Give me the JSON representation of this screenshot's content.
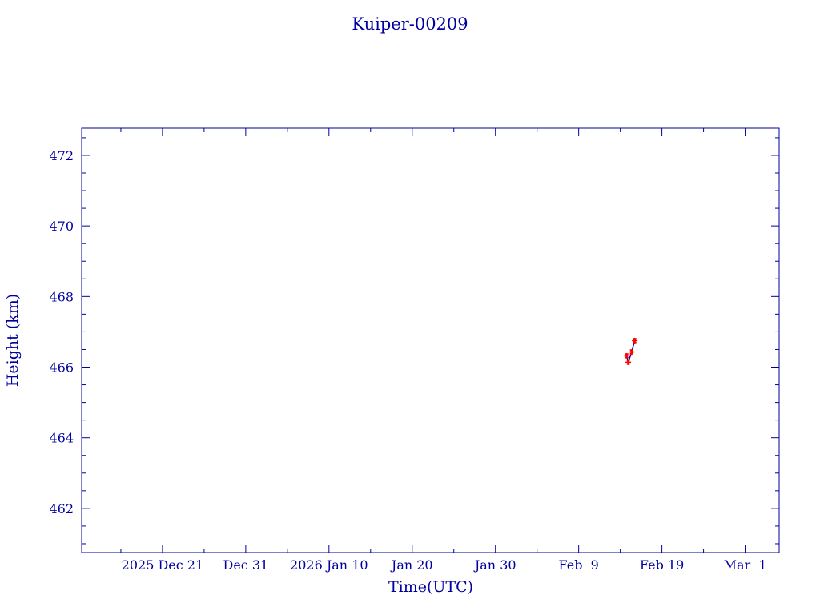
{
  "chart_data": {
    "type": "line",
    "title": "Kuiper-00209",
    "xlabel": "Time(UTC)",
    "ylabel": "Height (km)",
    "xlim": [
      "2025-12-11T07:00",
      "2026-03-05T02:00"
    ],
    "ylim": [
      460.75,
      472.77
    ],
    "x_ticks": [
      {
        "date": "2025-12-21",
        "label": "2025 Dec 21"
      },
      {
        "date": "2025-12-31",
        "label": "Dec 31"
      },
      {
        "date": "2026-01-10",
        "label": "2026 Jan 10"
      },
      {
        "date": "2026-01-20",
        "label": "Jan 20"
      },
      {
        "date": "2026-01-30",
        "label": "Jan 30"
      },
      {
        "date": "2026-02-09",
        "label": "Feb  9"
      },
      {
        "date": "2026-02-19",
        "label": "Feb 19"
      },
      {
        "date": "2026-03-01",
        "label": "Mar  1"
      }
    ],
    "y_ticks": [
      462,
      464,
      466,
      468,
      470,
      472
    ],
    "grid": false,
    "colors": {
      "axes": "#0000a0",
      "line": "#0000a0",
      "markers": "#ff0000"
    },
    "series": [
      {
        "x": [
          "2026-02-14T18:30",
          "2026-02-14T23:00",
          "2026-02-15T08:30",
          "2026-02-15T17:30"
        ],
        "y": [
          466.32,
          466.14,
          466.43,
          466.75
        ]
      }
    ]
  }
}
